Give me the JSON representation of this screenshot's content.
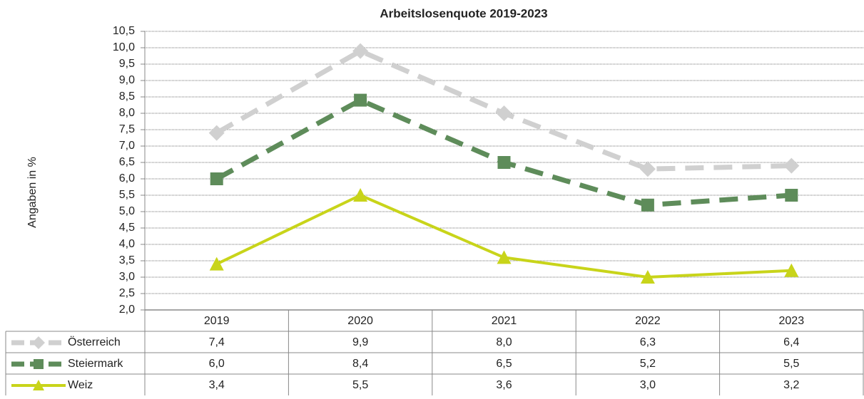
{
  "chart_data": {
    "type": "line",
    "title": "Arbeitslosenquote 2019-2023",
    "y_label": "Angaben in %",
    "categories": [
      "2019",
      "2020",
      "2021",
      "2022",
      "2023"
    ],
    "series": [
      {
        "name": "Österreich",
        "color": "#d0d0d0",
        "marker": "diamond",
        "dashed": true,
        "values": [
          7.4,
          9.9,
          8.0,
          6.3,
          6.4
        ],
        "value_labels": [
          "7,4",
          "9,9",
          "8,0",
          "6,3",
          "6,4"
        ]
      },
      {
        "name": "Steiermark",
        "color": "#5e8c5a",
        "marker": "square",
        "dashed": true,
        "values": [
          6.0,
          8.4,
          6.5,
          5.2,
          5.5
        ],
        "value_labels": [
          "6,0",
          "8,4",
          "6,5",
          "5,2",
          "5,5"
        ]
      },
      {
        "name": "Weiz",
        "color": "#c8d41a",
        "marker": "triangle",
        "dashed": false,
        "values": [
          3.4,
          5.5,
          3.6,
          3.0,
          3.2
        ],
        "value_labels": [
          "3,4",
          "5,5",
          "3,6",
          "3,0",
          "3,2"
        ]
      }
    ],
    "ylim": [
      2.0,
      10.5
    ],
    "yticks": [
      {
        "value": 2.0,
        "label": "2,0"
      },
      {
        "value": 2.5,
        "label": "2,5"
      },
      {
        "value": 3.0,
        "label": "3,0"
      },
      {
        "value": 3.5,
        "label": "3,5"
      },
      {
        "value": 4.0,
        "label": "4,0"
      },
      {
        "value": 4.5,
        "label": "4,5"
      },
      {
        "value": 5.0,
        "label": "5,0"
      },
      {
        "value": 5.5,
        "label": "5,5"
      },
      {
        "value": 6.0,
        "label": "6,0"
      },
      {
        "value": 6.5,
        "label": "6,5"
      },
      {
        "value": 7.0,
        "label": "7,0"
      },
      {
        "value": 7.5,
        "label": "7,5"
      },
      {
        "value": 8.0,
        "label": "8,0"
      },
      {
        "value": 8.5,
        "label": "8,5"
      },
      {
        "value": 9.0,
        "label": "9,0"
      },
      {
        "value": 9.5,
        "label": "9,5"
      },
      {
        "value": 10.0,
        "label": "10,0"
      },
      {
        "value": 10.5,
        "label": "10,5"
      }
    ],
    "grid": true
  }
}
